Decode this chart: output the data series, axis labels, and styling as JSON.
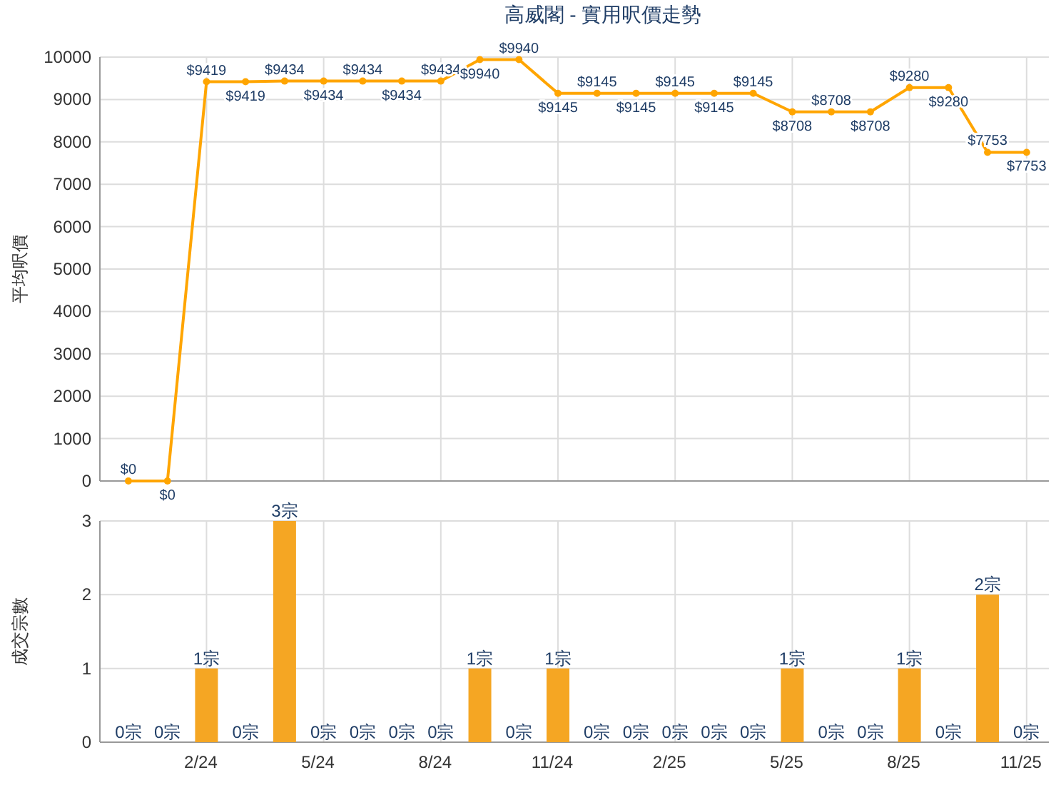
{
  "chart_data": [
    {
      "type": "line",
      "title": "高威閣 - 實用呎價走勢",
      "ylabel": "平均呎價",
      "categories": [
        null,
        null,
        null,
        null,
        null,
        null,
        null,
        null,
        null,
        null,
        null,
        null,
        null,
        null,
        null,
        null,
        null,
        null,
        null,
        null,
        null,
        null,
        null,
        null
      ],
      "values": [
        0,
        0,
        9419,
        9419,
        9434,
        9434,
        9434,
        9434,
        9434,
        9940,
        9940,
        9145,
        9145,
        9145,
        9145,
        9145,
        9145,
        8708,
        8708,
        8708,
        9280,
        9280,
        7753,
        7753
      ],
      "value_labels": [
        "$0",
        "$0",
        "$9419",
        "$9419",
        "$9434",
        "$9434",
        "$9434",
        "$9434",
        "$9434",
        "$9940",
        "$9940",
        "$9145",
        "$9145",
        "$9145",
        "$9145",
        "$9145",
        "$9145",
        "$8708",
        "$8708",
        "$8708",
        "$9280",
        "$9280",
        "$7753",
        "$7753"
      ],
      "color": "#ffa500",
      "marker": "circle",
      "ylim": [
        0,
        10000
      ],
      "yticks": [
        0,
        1000,
        2000,
        3000,
        4000,
        5000,
        6000,
        7000,
        8000,
        9000,
        10000
      ],
      "grid": true,
      "tick_labels": "y"
    },
    {
      "type": "bar",
      "ylabel": "成交宗數",
      "categories": [
        null,
        null,
        "2/24",
        null,
        null,
        "5/24",
        null,
        null,
        "8/24",
        null,
        null,
        "11/24",
        null,
        null,
        "2/25",
        null,
        null,
        "5/25",
        null,
        null,
        "8/25",
        null,
        null,
        "11/25"
      ],
      "values": [
        0,
        0,
        1,
        0,
        3,
        0,
        0,
        0,
        0,
        1,
        0,
        1,
        0,
        0,
        0,
        0,
        0,
        1,
        0,
        0,
        1,
        0,
        2,
        0
      ],
      "value_labels": [
        "0宗",
        "0宗",
        "1宗",
        "0宗",
        "3宗",
        "0宗",
        "0宗",
        "0宗",
        "0宗",
        "1宗",
        "0宗",
        "1宗",
        "0宗",
        "0宗",
        "0宗",
        "0宗",
        "0宗",
        "1宗",
        "0宗",
        "0宗",
        "1宗",
        "0宗",
        "2宗",
        "0宗"
      ],
      "color": "#f5a623",
      "ylim": [
        0,
        3
      ],
      "yticks": [
        0,
        1,
        2,
        3
      ],
      "grid": true
    }
  ]
}
